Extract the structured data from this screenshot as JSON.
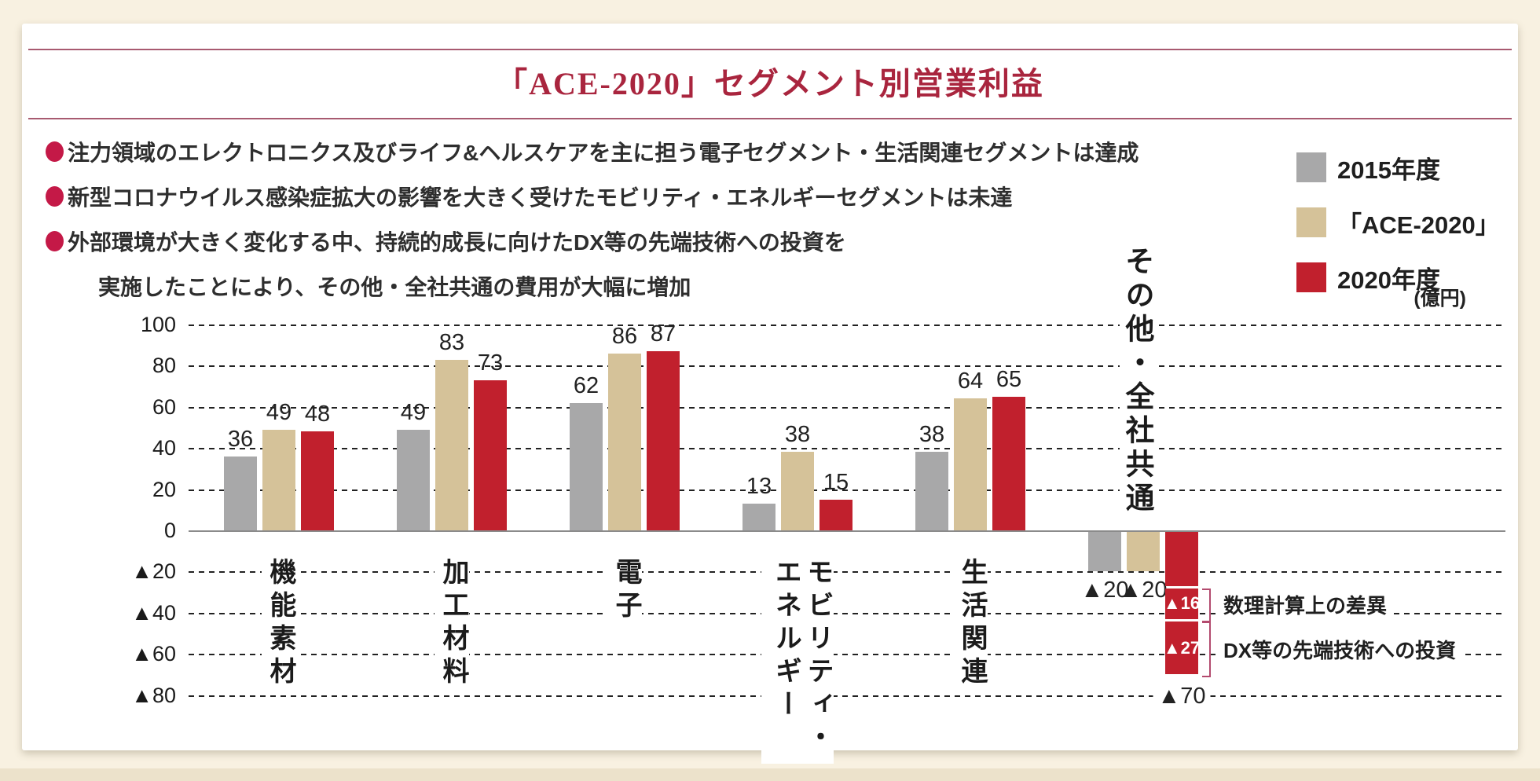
{
  "title": "「ACE-2020」セグメント別営業利益",
  "unit_label": "(億円)",
  "bullets": [
    {
      "marker": true,
      "text": "注力領域のエレクトロニクス及びライフ&ヘルスケアを主に担う電子セグメント・生活関連セグメントは達成"
    },
    {
      "marker": true,
      "text": "新型コロナウイルス感染症拡大の影響を大きく受けたモビリティ・エネルギーセグメントは未達"
    },
    {
      "marker": true,
      "text": "外部環境が大きく変化する中、持続的成長に向けたDX等の先端技術への投資を"
    },
    {
      "marker": false,
      "text": "実施したことにより、その他・全社共通の費用が大幅に増加"
    }
  ],
  "legend": [
    {
      "label": "2015年度",
      "color": "#a8a8a9"
    },
    {
      "label": "「ACE-2020」",
      "color": "#d5c299"
    },
    {
      "label": "2020年度",
      "color": "#c1202d"
    }
  ],
  "colors": {
    "page_background": "#f8f1e1",
    "card_background": "#ffffff",
    "accent_red": "#a9253e",
    "rule_red": "#a85a70",
    "bullet_red": "#c41947",
    "bracket_pink": "#b34a6e",
    "grid_black": "#222222",
    "zero_line_gray": "#8b8b8b"
  },
  "chart_data": {
    "type": "bar",
    "title": "「ACE-2020」セグメント別営業利益",
    "unit": "億円",
    "categories": [
      "機能素材",
      "加工材料",
      "電子",
      "モビリティ・エネルギー",
      "生活関連",
      "その他・全社共通"
    ],
    "series": [
      {
        "name": "2015年度",
        "color": "#a8a8a9",
        "values": [
          36,
          49,
          62,
          13,
          38,
          -20
        ]
      },
      {
        "name": "「ACE-2020」",
        "color": "#d5c299",
        "values": [
          49,
          83,
          86,
          38,
          64,
          -20
        ]
      },
      {
        "name": "2020年度",
        "color": "#c1202d",
        "values": [
          48,
          73,
          87,
          15,
          65,
          -70
        ]
      }
    ],
    "yticks": [
      100,
      80,
      60,
      40,
      20,
      0,
      -20,
      -40,
      -60,
      -80
    ],
    "ylim": [
      -80,
      100
    ],
    "negative_prefix": "▲",
    "grid": "horizontal-dashed",
    "legend_position": "top-right",
    "breakdown": {
      "category": "その他・全社共通",
      "series": "2020年度",
      "segments": [
        {
          "value": -27,
          "label": "",
          "annotation": ""
        },
        {
          "value": -16,
          "label": "▲16",
          "annotation": "数理計算上の差異"
        },
        {
          "value": -27,
          "label": "▲27",
          "annotation": "DX等の先端技術への投資"
        }
      ],
      "total_label": "▲70"
    }
  }
}
